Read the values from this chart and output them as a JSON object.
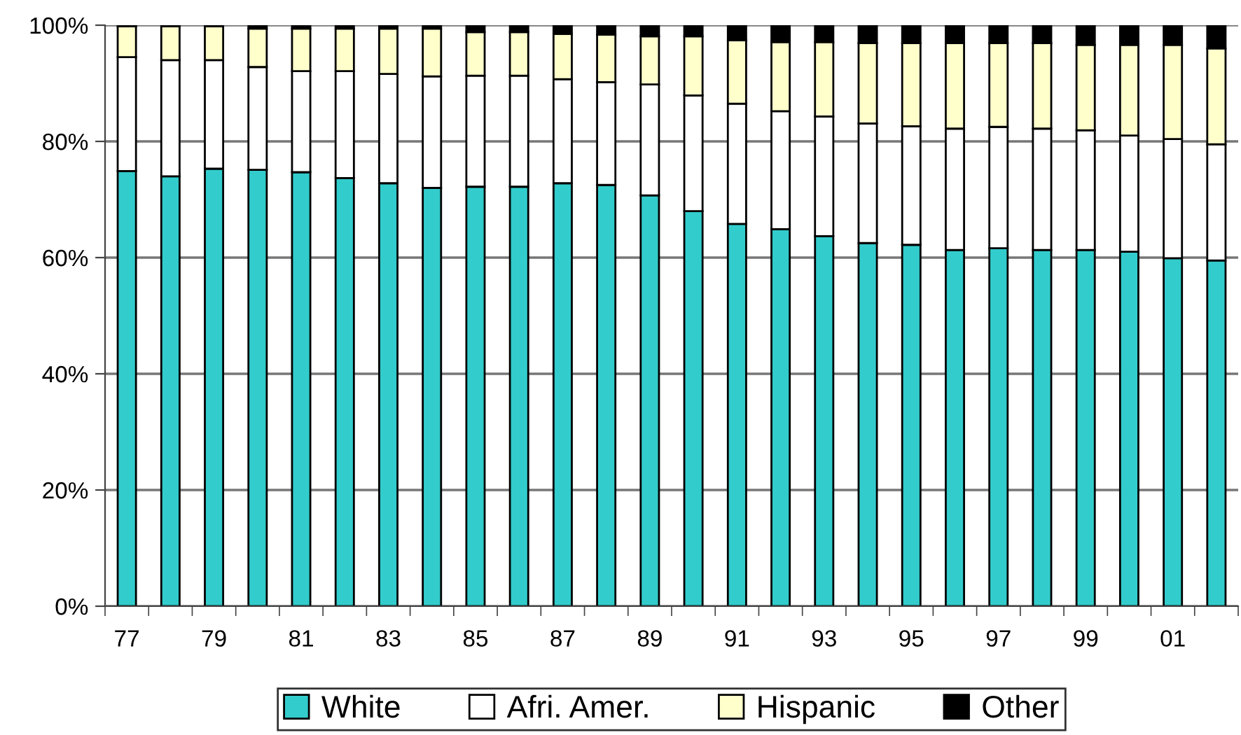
{
  "chart_data": {
    "type": "bar",
    "stacked": true,
    "categories": [
      "77",
      null,
      "79",
      null,
      "81",
      null,
      "83",
      null,
      "85",
      null,
      "87",
      null,
      "89",
      null,
      "91",
      null,
      "93",
      null,
      "95",
      null,
      "97",
      null,
      "99",
      null,
      "01",
      null
    ],
    "series": [
      {
        "name": "White",
        "color": "#33cccc",
        "values": [
          74.9,
          74.0,
          75.3,
          75.1,
          74.7,
          73.7,
          72.8,
          72.0,
          72.2,
          72.2,
          72.8,
          72.5,
          70.7,
          68.0,
          65.8,
          64.9,
          63.7,
          62.5,
          62.2,
          61.3,
          61.6,
          61.3,
          61.3,
          61.0,
          59.9,
          59.5
        ]
      },
      {
        "name": "Afri. Amer.",
        "color": "#ffffff",
        "values": [
          19.6,
          20.0,
          18.7,
          17.7,
          17.4,
          18.4,
          18.8,
          19.2,
          19.1,
          19.1,
          17.9,
          17.7,
          19.1,
          19.9,
          20.7,
          20.3,
          20.6,
          20.6,
          20.4,
          20.9,
          20.9,
          20.9,
          20.6,
          20.0,
          20.5,
          20.0
        ]
      },
      {
        "name": "Hispanic",
        "color": "#ffffcc",
        "values": [
          5.3,
          5.8,
          5.8,
          6.6,
          7.3,
          7.3,
          7.8,
          8.2,
          7.5,
          7.5,
          7.8,
          8.2,
          8.3,
          10.2,
          10.9,
          11.9,
          12.8,
          13.8,
          14.3,
          14.7,
          14.4,
          14.7,
          14.7,
          15.6,
          16.2,
          16.5
        ]
      },
      {
        "name": "Other",
        "color": "#000000",
        "values": [
          0.2,
          0.2,
          0.2,
          0.6,
          0.6,
          0.6,
          0.6,
          0.6,
          1.2,
          1.2,
          1.5,
          1.6,
          1.9,
          1.9,
          2.6,
          2.9,
          2.9,
          3.1,
          3.1,
          3.1,
          3.1,
          3.1,
          3.4,
          3.4,
          3.4,
          4.0
        ]
      }
    ],
    "ylim": [
      0,
      100
    ],
    "yticks": [
      {
        "value": 0,
        "label": "0%"
      },
      {
        "value": 20,
        "label": "20%"
      },
      {
        "value": 40,
        "label": "40%"
      },
      {
        "value": 60,
        "label": "60%"
      },
      {
        "value": 80,
        "label": "80%"
      },
      {
        "value": 100,
        "label": "100%"
      }
    ],
    "grid": "y",
    "legend": "bottom"
  }
}
